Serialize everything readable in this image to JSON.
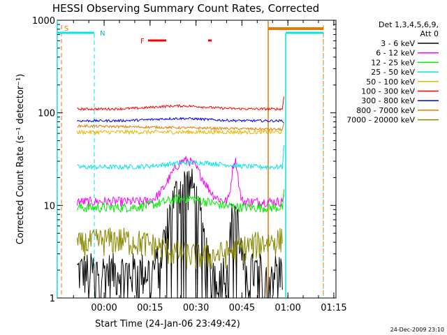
{
  "chart_data": {
    "type": "line",
    "title": "HESSI Observing Summary Count Rates, Corrected",
    "xlabel": "Start Time (24-Jan-06 23:49:42)",
    "ylabel": "Corrected Count Rate (s⁻¹ detector⁻¹)",
    "y_scale": "log",
    "ylim": [
      1,
      1000
    ],
    "y_ticks": [
      "1",
      "10",
      "100",
      "1000"
    ],
    "x_range_minutes": [
      -5,
      86
    ],
    "x_ticks": [
      "00:00",
      "00:15",
      "00:30",
      "00:45",
      "01:00",
      "01:15"
    ],
    "x_tick_minutes": [
      10.3,
      25.3,
      40.3,
      55.3,
      70.3,
      85.3
    ],
    "legend_header": [
      "Det 1,3,4,5,6,9,",
      "Att 0"
    ],
    "series": [
      {
        "name": "3 - 6 keV",
        "color": "#000000",
        "level": 2.0
      },
      {
        "name": "6 - 12 keV",
        "color": "#ff00ff",
        "level": 11
      },
      {
        "name": "12 - 25 keV",
        "color": "#00ee00",
        "level": 9.5
      },
      {
        "name": "25 - 50 keV",
        "color": "#00e5e5",
        "level": 26
      },
      {
        "name": "50 - 100 keV",
        "color": "#e5b800",
        "level": 62
      },
      {
        "name": "100 - 300 keV",
        "color": "#ff0000",
        "level": 110
      },
      {
        "name": "300 - 800 keV",
        "color": "#0000ee",
        "level": 82
      },
      {
        "name": "800 - 7000 keV",
        "color": "#e57c00",
        "level": 72
      },
      {
        "name": "7000 - 20000 keV",
        "color": "#888800",
        "level": 3.6
      }
    ],
    "flag_labels": {
      "saa": "S",
      "night": "N",
      "flare": "F"
    },
    "footer_date": "24-Dec-2009 23:10"
  }
}
